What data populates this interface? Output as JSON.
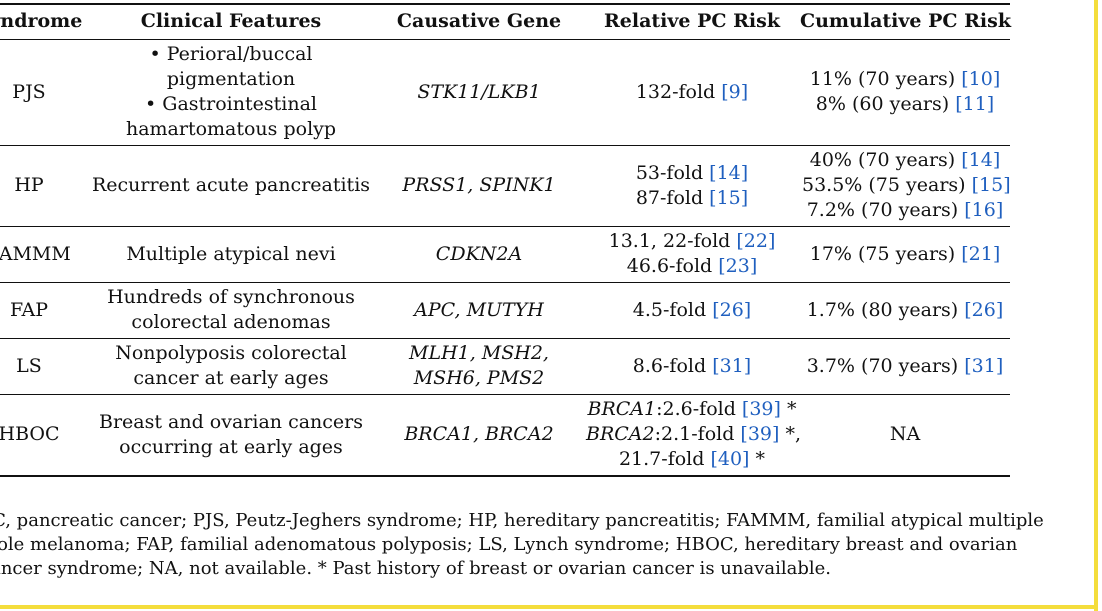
{
  "headers": [
    "Syndrome",
    "Clinical Features",
    "Causative Gene",
    "Relative PC Risk",
    "Cumulative PC Risk"
  ],
  "rows": [
    {
      "syndrome": "PJS",
      "features": [
        {
          "bullet": "•",
          "lines": [
            "Perioral/buccal",
            "pigmentation"
          ]
        },
        {
          "bullet": "•",
          "lines": [
            "Gastrointestinal",
            "hamartomatous polyp"
          ]
        }
      ],
      "gene_lines": [
        "STK11/LKB1"
      ],
      "relative": [
        {
          "text": "132-fold ",
          "ref": "[9]",
          "suffix": ""
        }
      ],
      "cumulative": [
        {
          "text": "11% (70 years) ",
          "ref": "[10]"
        },
        {
          "text": "8% (60 years) ",
          "ref": "[11]"
        }
      ]
    },
    {
      "syndrome": "HP",
      "feature_lines": [
        "Recurrent acute pancreatitis"
      ],
      "gene_lines": [
        "PRSS1, SPINK1"
      ],
      "relative": [
        {
          "text": "53-fold ",
          "ref": "[14]",
          "suffix": ""
        },
        {
          "text": "87-fold ",
          "ref": "[15]",
          "suffix": ""
        }
      ],
      "cumulative": [
        {
          "text": "40% (70 years) ",
          "ref": "[14]"
        },
        {
          "text": "53.5% (75 years) ",
          "ref": "[15]"
        },
        {
          "text": "7.2% (70 years) ",
          "ref": "[16]"
        }
      ]
    },
    {
      "syndrome": "FAMMM",
      "feature_lines": [
        "Multiple atypical nevi"
      ],
      "gene_lines": [
        "CDKN2A"
      ],
      "relative": [
        {
          "text": "13.1, 22-fold ",
          "ref": "[22]",
          "suffix": ""
        },
        {
          "text": "46.6-fold ",
          "ref": "[23]",
          "suffix": ""
        }
      ],
      "cumulative": [
        {
          "text": "17% (75 years) ",
          "ref": "[21]"
        }
      ]
    },
    {
      "syndrome": "FAP",
      "feature_lines": [
        "Hundreds of synchronous",
        "colorectal adenomas"
      ],
      "gene_lines": [
        "APC, MUTYH"
      ],
      "relative": [
        {
          "text": "4.5-fold ",
          "ref": "[26]",
          "suffix": ""
        }
      ],
      "cumulative": [
        {
          "text": "1.7% (80 years) ",
          "ref": "[26]"
        }
      ]
    },
    {
      "syndrome": "LS",
      "feature_lines": [
        "Nonpolyposis colorectal",
        "cancer at early ages"
      ],
      "gene_lines": [
        "MLH1, MSH2,",
        "MSH6, PMS2"
      ],
      "relative": [
        {
          "text": "8.6-fold ",
          "ref": "[31]",
          "suffix": ""
        }
      ],
      "cumulative": [
        {
          "text": "3.7% (70 years) ",
          "ref": "[31]"
        }
      ]
    },
    {
      "syndrome": "HBOC",
      "feature_lines": [
        "Breast and ovarian cancers",
        "occurring at early ages"
      ],
      "gene_lines": [
        "BRCA1, BRCA2"
      ],
      "relative": [
        {
          "gene": "BRCA1",
          "text": ":2.6-fold ",
          "ref": "[39]",
          "suffix": " *"
        },
        {
          "gene": "BRCA2",
          "text": ":2.1-fold ",
          "ref": "[39]",
          "suffix": " *,"
        },
        {
          "text": "21.7-fold ",
          "ref": "[40]",
          "suffix": " *"
        }
      ],
      "cumulative_text": "NA"
    }
  ],
  "footnote_lines": [
    "PC, pancreatic cancer; PJS, Peutz-Jeghers syndrome; HP, hereditary pancreatitis; FAMMM, familial atypical multiple",
    "mole melanoma; FAP, familial adenomatous polyposis; LS, Lynch syndrome; HBOC, hereditary breast and ovarian",
    "cancer syndrome; NA, not available. * Past history of breast or ovarian cancer is unavailable."
  ],
  "colors": {
    "reference_link": "#1f5fbf",
    "frame_accent": "#f4dd3c"
  }
}
